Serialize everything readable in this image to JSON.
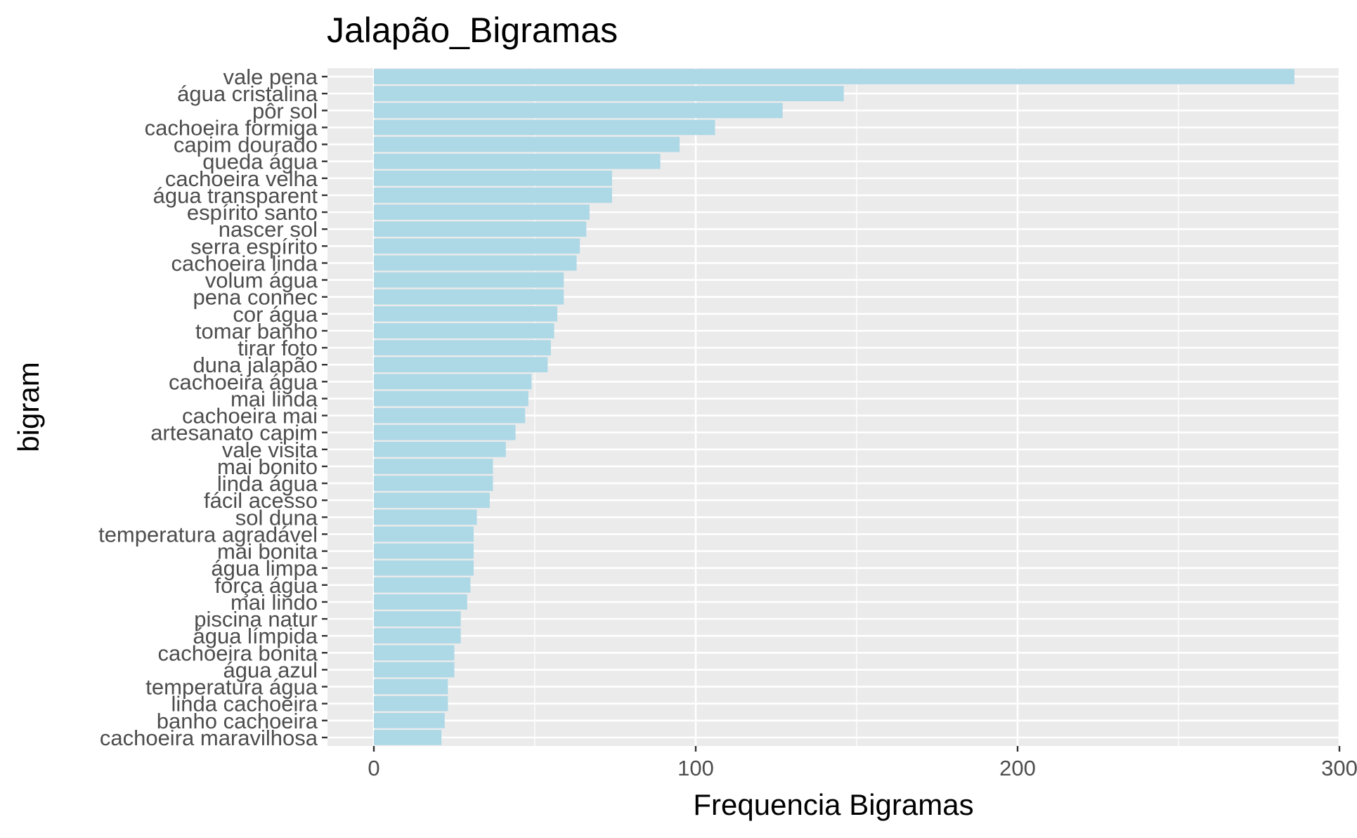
{
  "chart_data": {
    "type": "bar",
    "orientation": "horizontal",
    "title": "Jalapão_Bigramas",
    "xlabel": "Frequencia Bigramas",
    "ylabel": "bigram",
    "xlim": [
      0,
      300
    ],
    "x_ticks": [
      "0",
      "100",
      "200",
      "300"
    ],
    "grid": true,
    "bar_color": "#add8e6",
    "panel_color": "#ebebeb",
    "categories": [
      "vale pena",
      "água cristalina",
      "pôr sol",
      "cachoeira formiga",
      "capim dourado",
      "queda água",
      "cachoeira velha",
      "água transparent",
      "espírito santo",
      "nascer sol",
      "serra espírito",
      "cachoeira linda",
      "volum água",
      "pena connec",
      "cor água",
      "tomar banho",
      "tirar foto",
      "duna jalapão",
      "cachoeira água",
      "mai linda",
      "cachoeira mai",
      "artesanato capim",
      "vale visita",
      "mai bonito",
      "linda água",
      "fácil acesso",
      "sol duna",
      "temperatura agradável",
      "mai bonita",
      "água limpa",
      "força água",
      "mai lindo",
      "piscina natur",
      "água límpida",
      "cachoeira bonita",
      "água azul",
      "temperatura água",
      "linda cachoeira",
      "banho cachoeira",
      "cachoeira maravilhosa"
    ],
    "values": [
      286,
      146,
      127,
      106,
      95,
      89,
      74,
      74,
      67,
      66,
      64,
      63,
      59,
      59,
      57,
      56,
      55,
      54,
      49,
      48,
      47,
      44,
      41,
      37,
      37,
      36,
      32,
      31,
      31,
      31,
      30,
      29,
      27,
      27,
      25,
      25,
      23,
      23,
      22,
      21
    ]
  }
}
